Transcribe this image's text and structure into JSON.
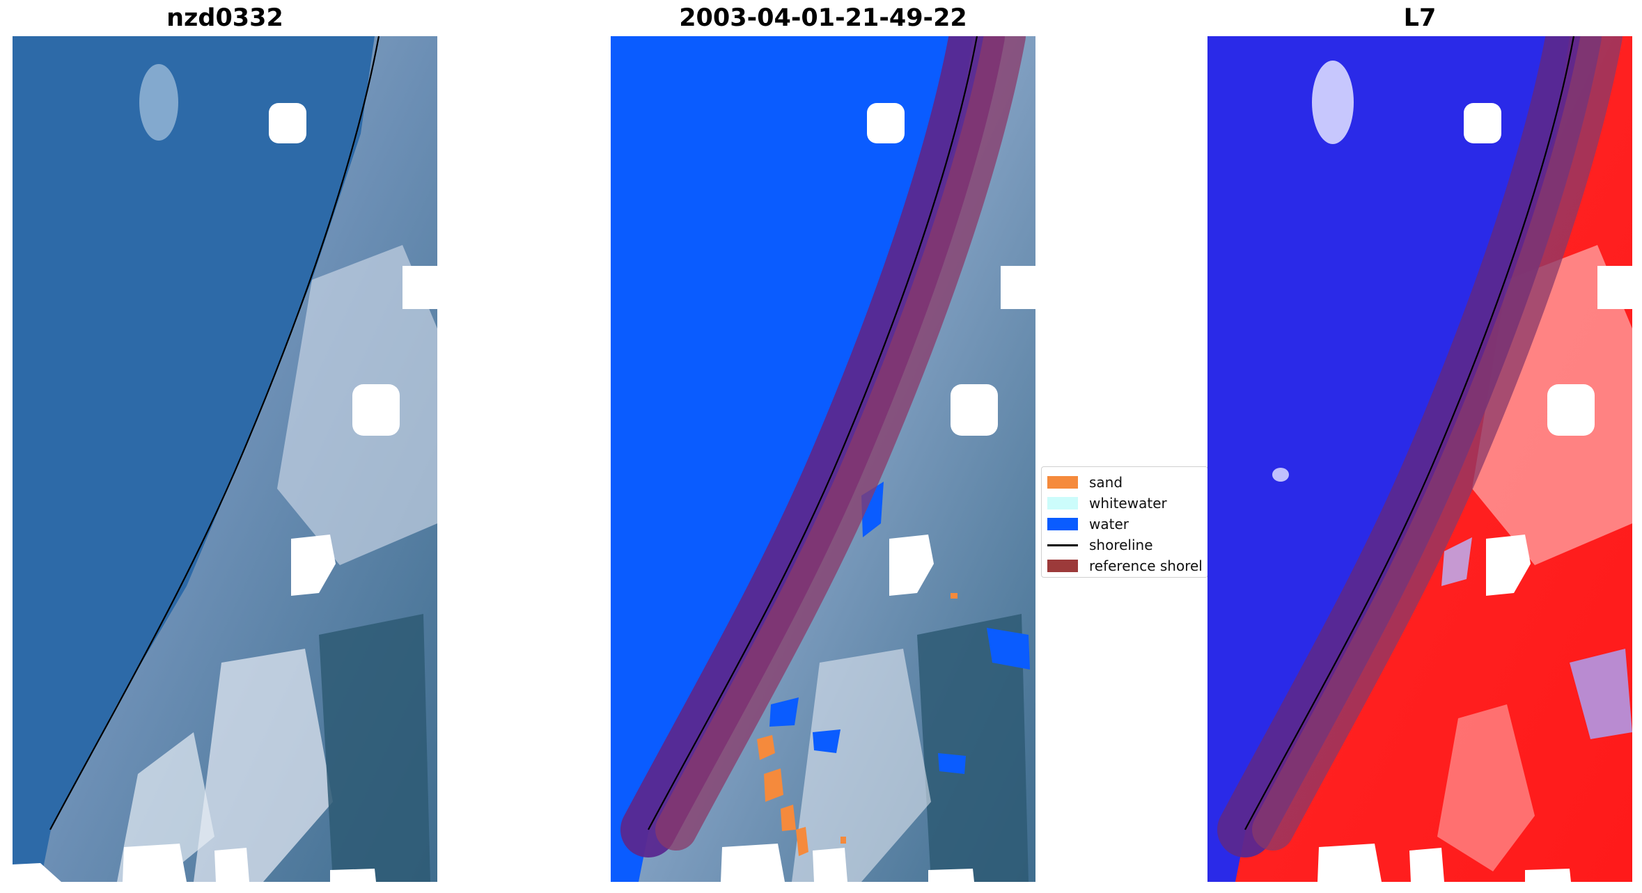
{
  "panels": [
    {
      "title": "nzd0332"
    },
    {
      "title": "2003-04-01-21-49-22"
    },
    {
      "title": "L7"
    }
  ],
  "legend": {
    "items": [
      {
        "label": "sand",
        "kind": "patch",
        "color": "#f58a3c"
      },
      {
        "label": "whitewater",
        "kind": "patch",
        "color": "#ccfcfb"
      },
      {
        "label": "water",
        "kind": "patch",
        "color": "#0a5cff"
      },
      {
        "label": "shoreline",
        "kind": "line",
        "color": "#000000"
      },
      {
        "label": "reference shorel",
        "kind": "patch",
        "color": "#9c3a3a"
      }
    ]
  },
  "colors": {
    "water_classified": "#0a5cff",
    "buffer_purple": "#5a2890",
    "buffer_red": "#8a3a6a",
    "rgb_water": "#2d6aa8",
    "mndwi_water": "#2a2ae8",
    "mndwi_land": "#ff2020"
  }
}
